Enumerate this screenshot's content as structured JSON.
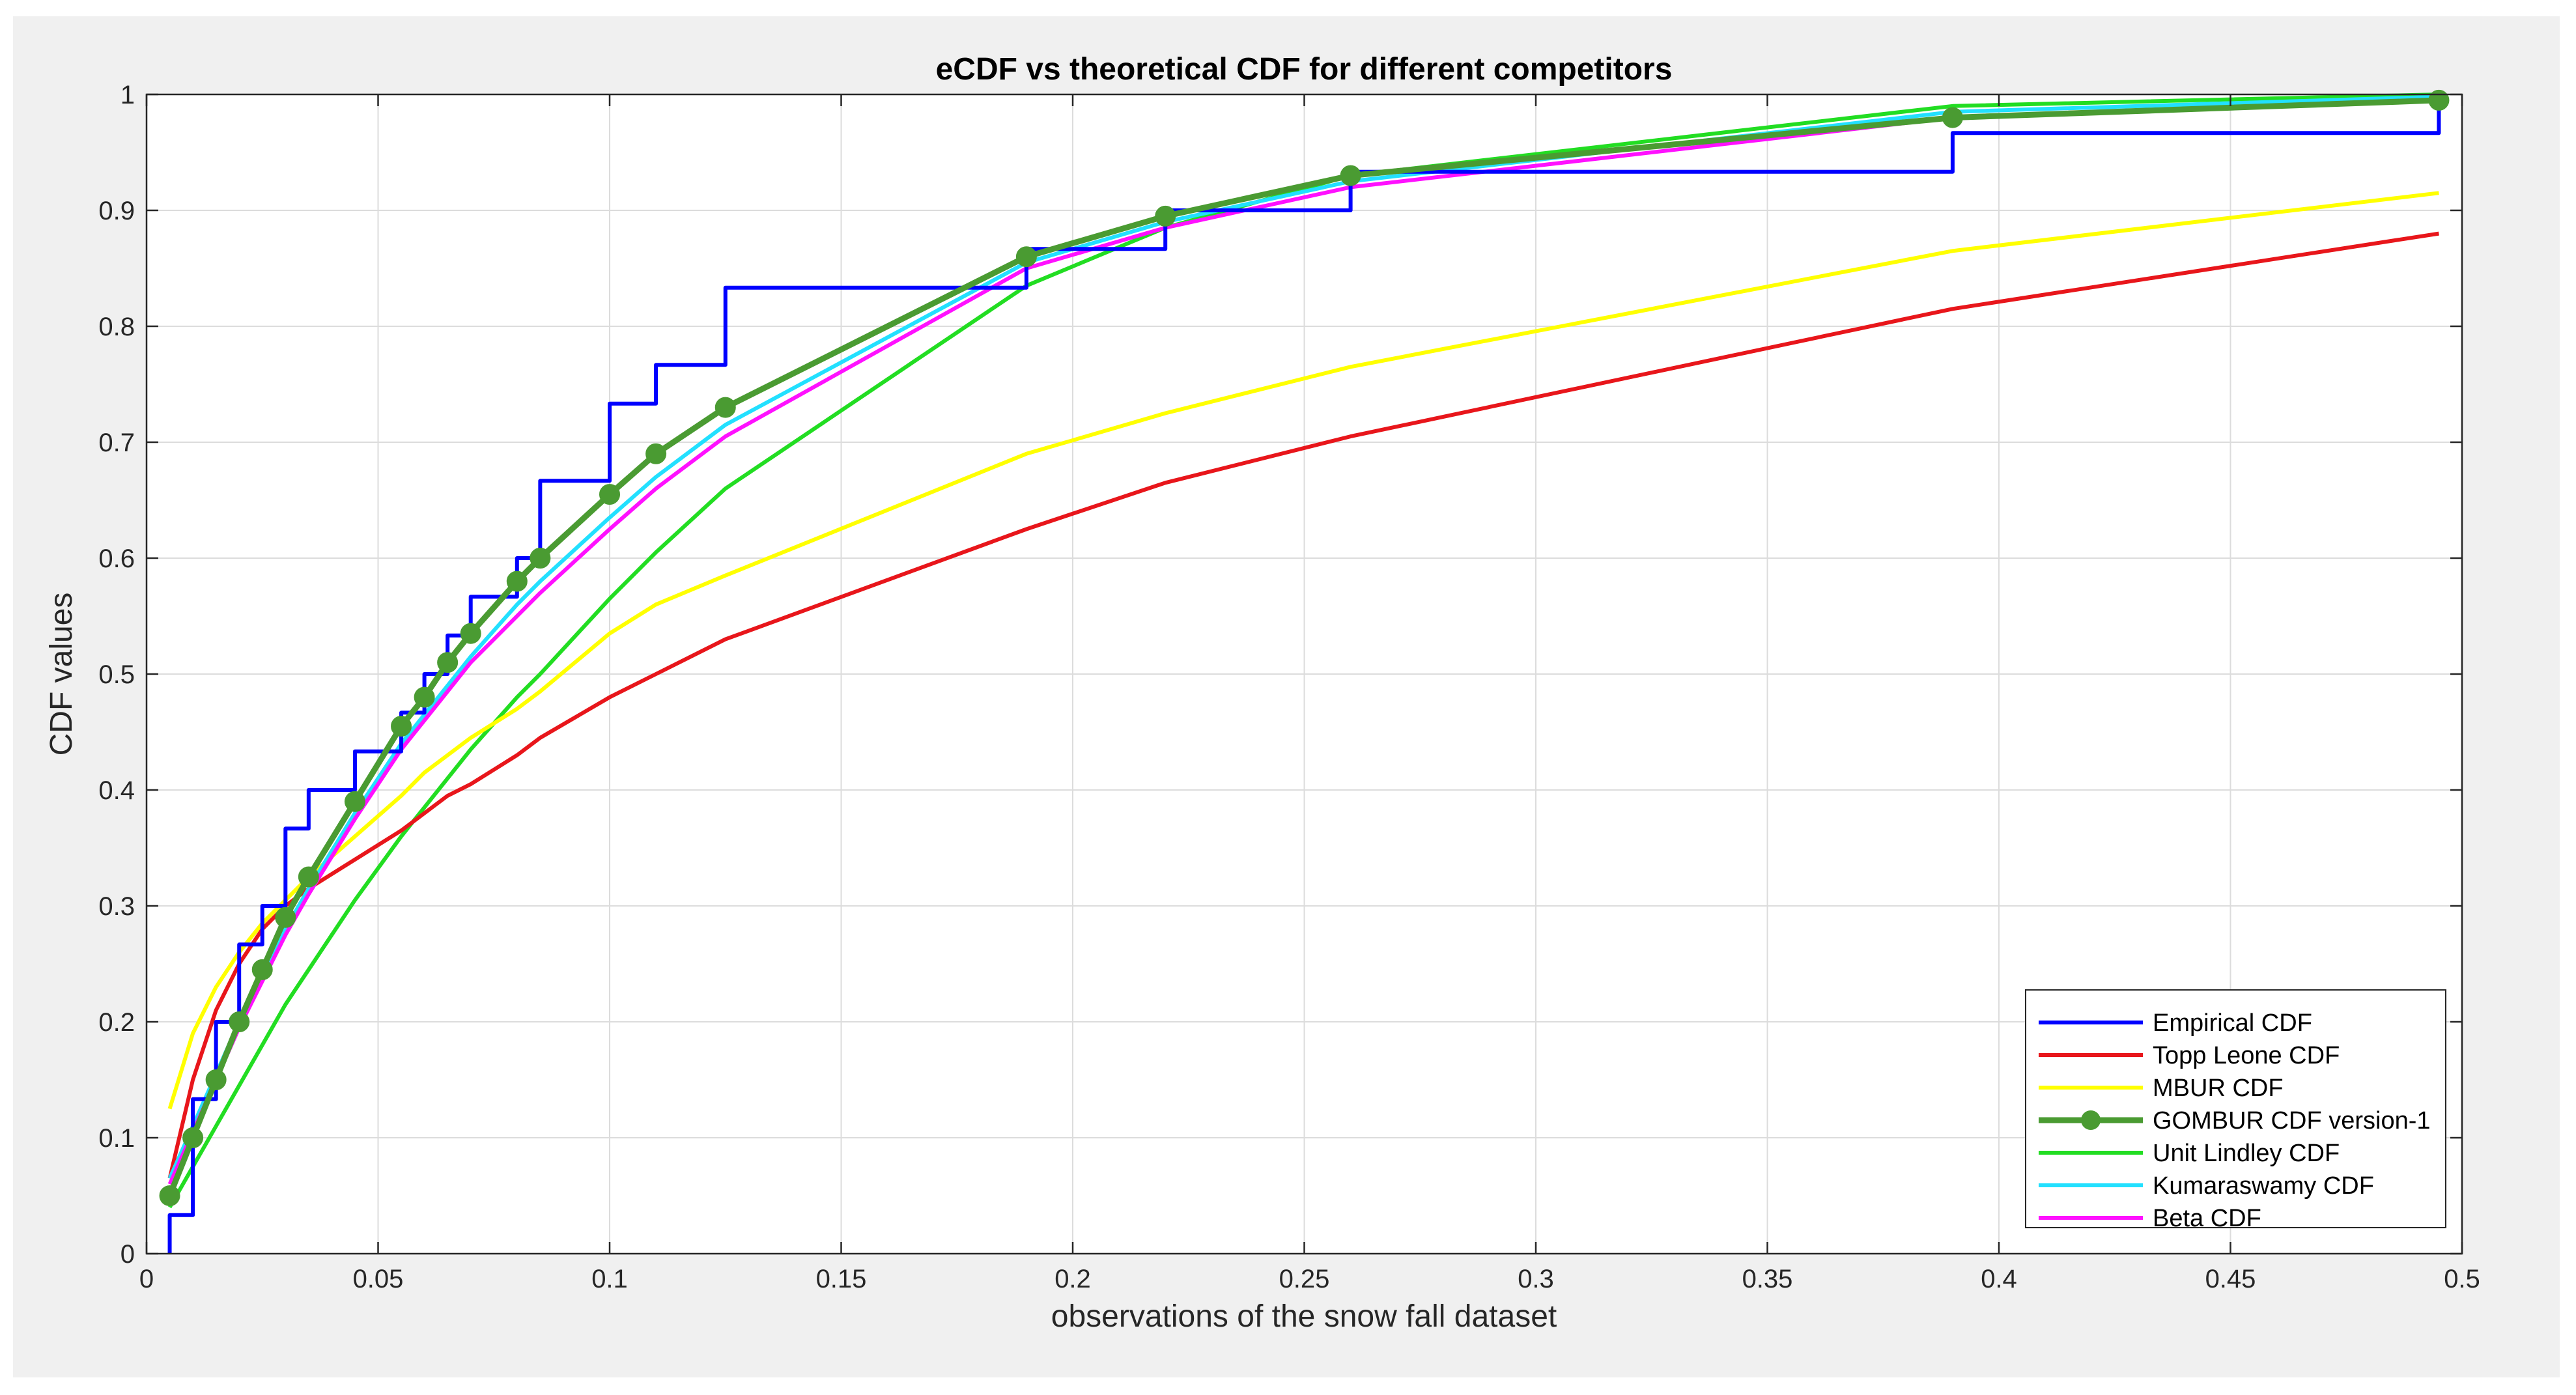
{
  "chart_data": {
    "type": "line",
    "title": "eCDF vs theoretical CDF for different competitors",
    "xlabel": "observations of the snow fall dataset",
    "ylabel": "CDF values",
    "xlim": [
      0,
      0.5
    ],
    "ylim": [
      0,
      1
    ],
    "xticks": [
      0,
      0.05,
      0.1,
      0.15,
      0.2,
      0.25,
      0.3,
      0.35,
      0.4,
      0.45,
      0.5
    ],
    "yticks": [
      0,
      0.1,
      0.2,
      0.3,
      0.4,
      0.5,
      0.6,
      0.7,
      0.8,
      0.9,
      1
    ],
    "xtick_labels": [
      "0",
      "0.05",
      "0.1",
      "0.15",
      "0.2",
      "0.25",
      "0.3",
      "0.35",
      "0.4",
      "0.45",
      "0.5"
    ],
    "ytick_labels": [
      "0",
      "0.1",
      "0.2",
      "0.3",
      "0.4",
      "0.5",
      "0.6",
      "0.7",
      "0.8",
      "0.9",
      "1"
    ],
    "grid": true,
    "legend_position": "bottom-right",
    "series": [
      {
        "name": "Empirical CDF",
        "style": "step",
        "color": "#0000ff",
        "x": [
          0.005,
          0.01,
          0.015,
          0.02,
          0.025,
          0.03,
          0.035,
          0.045,
          0.055,
          0.06,
          0.065,
          0.07,
          0.08,
          0.085,
          0.1,
          0.11,
          0.125,
          0.19,
          0.22,
          0.26,
          0.39,
          0.495
        ],
        "y": [
          0.0333,
          0.1333,
          0.2,
          0.2667,
          0.3,
          0.3667,
          0.4,
          0.4333,
          0.4667,
          0.5,
          0.5333,
          0.5667,
          0.6,
          0.6667,
          0.7333,
          0.7667,
          0.8333,
          0.8667,
          0.9,
          0.9333,
          0.9667,
          1.0
        ]
      },
      {
        "name": "Topp Leone CDF",
        "style": "line",
        "color": "#e8161b",
        "x": [
          0.005,
          0.01,
          0.015,
          0.02,
          0.025,
          0.03,
          0.035,
          0.045,
          0.055,
          0.06,
          0.065,
          0.07,
          0.08,
          0.085,
          0.1,
          0.11,
          0.125,
          0.19,
          0.22,
          0.26,
          0.39,
          0.495
        ],
        "y": [
          0.065,
          0.15,
          0.21,
          0.25,
          0.28,
          0.3,
          0.315,
          0.34,
          0.365,
          0.38,
          0.395,
          0.405,
          0.43,
          0.445,
          0.48,
          0.5,
          0.53,
          0.625,
          0.665,
          0.705,
          0.815,
          0.88
        ]
      },
      {
        "name": "MBUR CDF",
        "style": "line",
        "color": "#ffff00",
        "x": [
          0.005,
          0.01,
          0.015,
          0.02,
          0.025,
          0.03,
          0.035,
          0.045,
          0.055,
          0.06,
          0.065,
          0.07,
          0.08,
          0.085,
          0.1,
          0.11,
          0.125,
          0.19,
          0.22,
          0.26,
          0.39,
          0.495
        ],
        "y": [
          0.125,
          0.19,
          0.23,
          0.26,
          0.285,
          0.305,
          0.325,
          0.36,
          0.395,
          0.415,
          0.43,
          0.445,
          0.47,
          0.485,
          0.535,
          0.56,
          0.585,
          0.69,
          0.725,
          0.765,
          0.865,
          0.915
        ]
      },
      {
        "name": "GOMBUR CDF version-1",
        "style": "line-marker",
        "color": "#4a9b32",
        "x": [
          0.005,
          0.01,
          0.015,
          0.02,
          0.025,
          0.03,
          0.035,
          0.045,
          0.055,
          0.06,
          0.065,
          0.07,
          0.08,
          0.085,
          0.1,
          0.11,
          0.125,
          0.19,
          0.22,
          0.26,
          0.39,
          0.495
        ],
        "y": [
          0.05,
          0.1,
          0.15,
          0.2,
          0.245,
          0.29,
          0.325,
          0.39,
          0.455,
          0.48,
          0.51,
          0.535,
          0.58,
          0.6,
          0.655,
          0.69,
          0.73,
          0.86,
          0.895,
          0.93,
          0.98,
          0.995
        ]
      },
      {
        "name": "Unit Lindley CDF",
        "style": "line",
        "color": "#22dd22",
        "x": [
          0.005,
          0.01,
          0.015,
          0.02,
          0.025,
          0.03,
          0.035,
          0.045,
          0.055,
          0.06,
          0.065,
          0.07,
          0.08,
          0.085,
          0.1,
          0.11,
          0.125,
          0.19,
          0.22,
          0.26,
          0.39,
          0.495
        ],
        "y": [
          0.04,
          0.075,
          0.11,
          0.145,
          0.18,
          0.215,
          0.245,
          0.305,
          0.36,
          0.385,
          0.41,
          0.435,
          0.48,
          0.5,
          0.565,
          0.605,
          0.66,
          0.835,
          0.885,
          0.93,
          0.99,
          1.0
        ]
      },
      {
        "name": "Kumaraswamy CDF",
        "style": "line",
        "color": "#22e0ff",
        "x": [
          0.005,
          0.01,
          0.015,
          0.02,
          0.025,
          0.03,
          0.035,
          0.045,
          0.055,
          0.06,
          0.065,
          0.07,
          0.08,
          0.085,
          0.1,
          0.11,
          0.125,
          0.19,
          0.22,
          0.26,
          0.39,
          0.495
        ],
        "y": [
          0.065,
          0.11,
          0.155,
          0.2,
          0.24,
          0.28,
          0.315,
          0.38,
          0.44,
          0.465,
          0.49,
          0.515,
          0.56,
          0.58,
          0.635,
          0.67,
          0.715,
          0.855,
          0.89,
          0.925,
          0.985,
          0.998
        ]
      },
      {
        "name": "Beta CDF",
        "style": "line",
        "color": "#ff10ff",
        "x": [
          0.005,
          0.01,
          0.015,
          0.02,
          0.025,
          0.03,
          0.035,
          0.045,
          0.055,
          0.06,
          0.065,
          0.07,
          0.08,
          0.085,
          0.1,
          0.11,
          0.125,
          0.19,
          0.22,
          0.26,
          0.39,
          0.495
        ],
        "y": [
          0.06,
          0.105,
          0.15,
          0.195,
          0.235,
          0.275,
          0.31,
          0.375,
          0.435,
          0.46,
          0.485,
          0.51,
          0.55,
          0.57,
          0.625,
          0.66,
          0.705,
          0.85,
          0.885,
          0.92,
          0.98,
          0.995
        ]
      }
    ]
  }
}
